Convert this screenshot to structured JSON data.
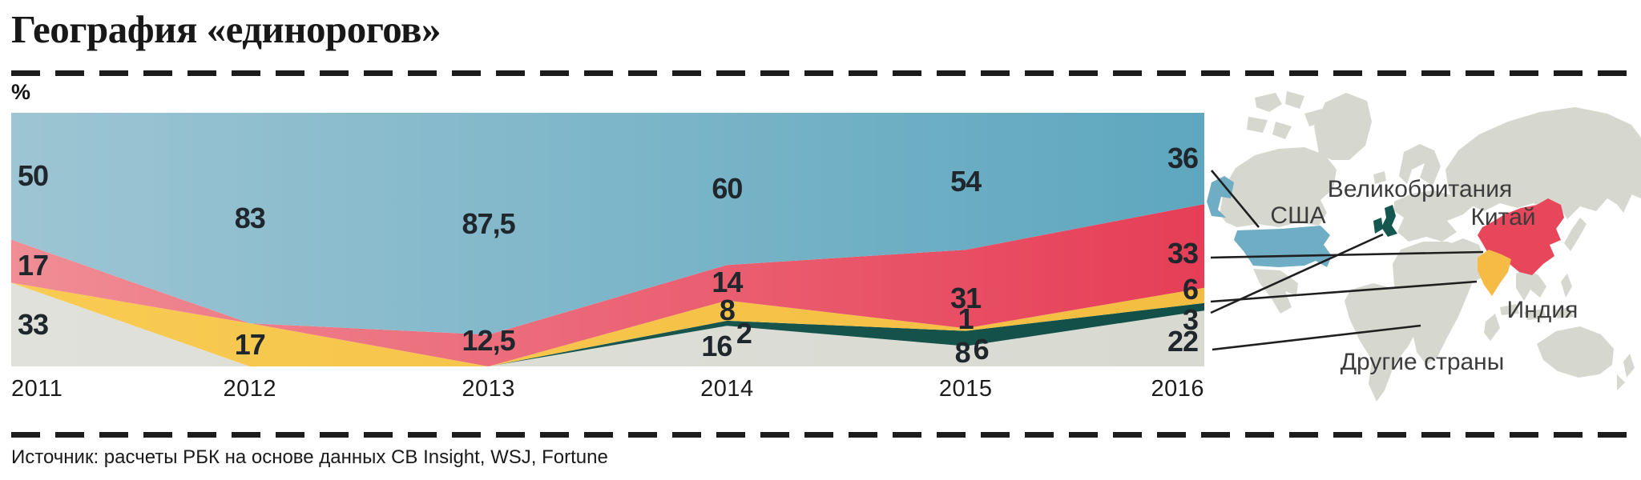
{
  "title": "География «единорогов»",
  "axis_unit": "%",
  "source": "Источник: расчеты РБК на основе данных CB Insight, WSJ, Fortune",
  "map_labels": {
    "uk": "Великобритания",
    "usa": "США",
    "china": "Китай",
    "india": "Индия",
    "other": "Другие страны"
  },
  "chart_data": {
    "type": "area",
    "variant": "stacked-100-percent",
    "title": "География «единорогов»",
    "x": [
      "2011",
      "2012",
      "2013",
      "2014",
      "2015",
      "2016"
    ],
    "xlabel": "",
    "ylabel": "%",
    "ylim": [
      0,
      100
    ],
    "grid": false,
    "legend_position": "map-right",
    "series": [
      {
        "id": "other",
        "name": "Другие страны",
        "color": "#dcddd5",
        "color_left": "#e0e1da",
        "color_right": "#d8dad2",
        "values": [
          33,
          0,
          0,
          16,
          8,
          22
        ],
        "labels": [
          "33",
          "",
          "",
          "16",
          "8",
          "22"
        ]
      },
      {
        "id": "uk",
        "name": "Великобритания",
        "color": "#17564e",
        "color_left": "#1d5c53",
        "color_right": "#124f48",
        "values": [
          0,
          0,
          0,
          2,
          6,
          3
        ],
        "labels": [
          "",
          "",
          "",
          "2",
          "6",
          "3"
        ]
      },
      {
        "id": "india",
        "name": "Индия",
        "color": "#f6c447",
        "color_left": "#f8cb52",
        "color_right": "#f4bd41",
        "values": [
          0,
          17,
          0,
          8,
          1,
          6
        ],
        "labels": [
          "",
          "17",
          "",
          "8",
          "1",
          "6"
        ]
      },
      {
        "id": "china",
        "name": "Китай",
        "color": "#e7425a",
        "color_left": "#f08d95",
        "color_right": "#e63e57",
        "values": [
          17,
          0,
          12.5,
          14,
          31,
          33
        ],
        "labels": [
          "17",
          "",
          "12,5",
          "14",
          "31",
          "33"
        ]
      },
      {
        "id": "usa",
        "name": "США",
        "color": "#66a9c0",
        "color_left": "#9dc5d3",
        "color_right": "#5ea7bf",
        "values": [
          50,
          83,
          87.5,
          60,
          54,
          36
        ],
        "labels": [
          "50",
          "83",
          "87,5",
          "60",
          "54",
          "36"
        ]
      }
    ]
  }
}
